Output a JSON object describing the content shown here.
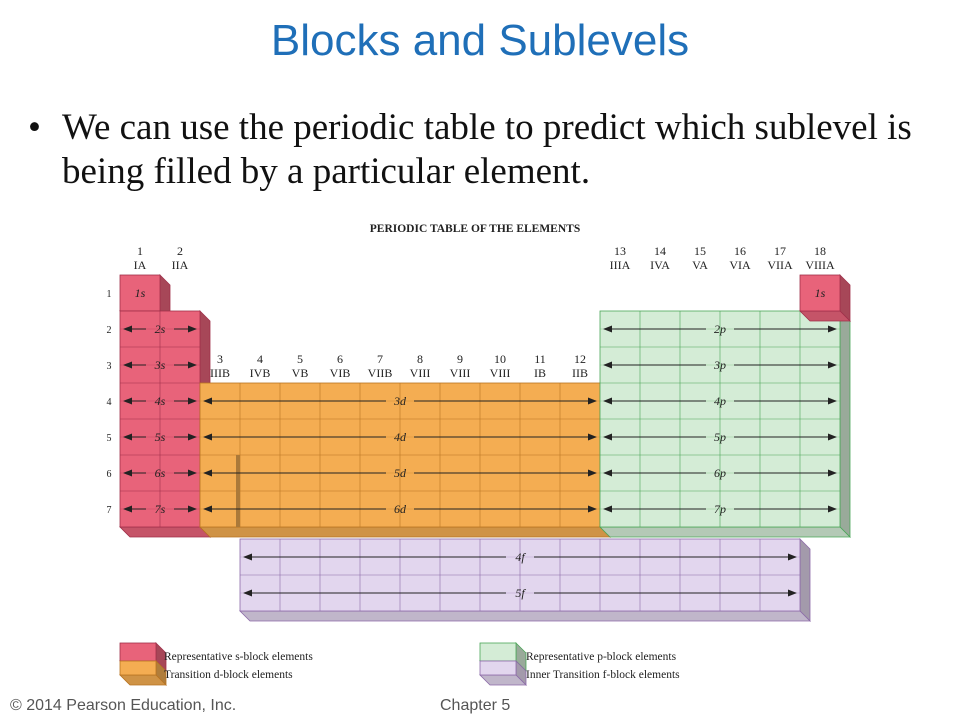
{
  "slide": {
    "title": "Blocks and Sublevels",
    "bullet": "We can use the periodic table to predict which sublevel is being filled by a particular element."
  },
  "table": {
    "title": "PERIODIC TABLE OF THE ELEMENTS",
    "period_numbers": [
      "1",
      "2",
      "3",
      "4",
      "5",
      "6",
      "7"
    ],
    "groups": [
      {
        "number": "1",
        "roman": "IA"
      },
      {
        "number": "2",
        "roman": "IIA"
      },
      {
        "number": "3",
        "roman": "IIIB"
      },
      {
        "number": "4",
        "roman": "IVB"
      },
      {
        "number": "5",
        "roman": "VB"
      },
      {
        "number": "6",
        "roman": "VIB"
      },
      {
        "number": "7",
        "roman": "VIIB"
      },
      {
        "number": "8",
        "roman": "VIII"
      },
      {
        "number": "9",
        "roman": "VIII"
      },
      {
        "number": "10",
        "roman": "VIII"
      },
      {
        "number": "11",
        "roman": "IB"
      },
      {
        "number": "12",
        "roman": "IIB"
      },
      {
        "number": "13",
        "roman": "IIIA"
      },
      {
        "number": "14",
        "roman": "IVA"
      },
      {
        "number": "15",
        "roman": "VA"
      },
      {
        "number": "16",
        "roman": "VIA"
      },
      {
        "number": "17",
        "roman": "VIIA"
      },
      {
        "number": "18",
        "roman": "VIIIA"
      }
    ],
    "s_block": {
      "color": "#e8637a",
      "labels": [
        "1s",
        "2s",
        "3s",
        "4s",
        "5s",
        "6s",
        "7s"
      ]
    },
    "he_label": "1s",
    "d_block": {
      "color": "#f4ad52",
      "labels": [
        "3d",
        "4d",
        "5d",
        "6d"
      ]
    },
    "p_block": {
      "color": "#d4ecd6",
      "labels": [
        "2p",
        "3p",
        "4p",
        "5p",
        "6p",
        "7p"
      ]
    },
    "f_block": {
      "color": "#e2d6ee",
      "labels": [
        "4f",
        "5f"
      ]
    }
  },
  "legend": {
    "s": "Representative s-block elements",
    "d": "Transition d-block elements",
    "p": "Representative p-block elements",
    "f": "Inner Transition f-block elements"
  },
  "footer": {
    "copyright": "© 2014 Pearson Education, Inc.",
    "chapter": "Chapter 5"
  }
}
